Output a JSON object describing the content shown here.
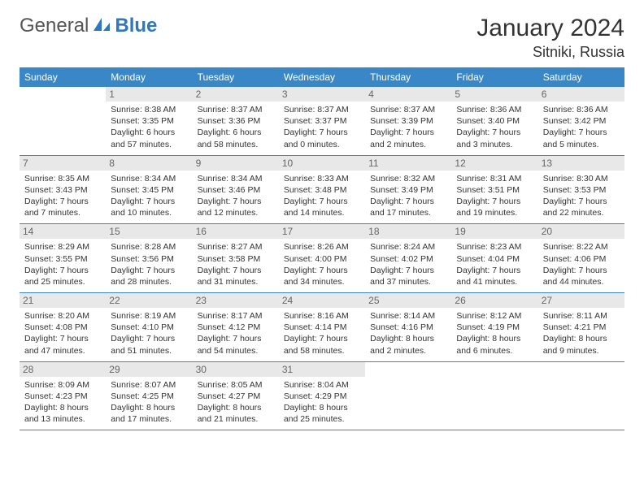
{
  "brand": {
    "general": "General",
    "blue": "Blue"
  },
  "colors": {
    "header_bg": "#3a87c8",
    "header_text": "#ffffff",
    "daynum_bg": "#e8e8e8",
    "daynum_text": "#666666",
    "body_text": "#333333",
    "rule": "#3a87c8"
  },
  "title": "January 2024",
  "location": "Sitniki, Russia",
  "weekdays": [
    "Sunday",
    "Monday",
    "Tuesday",
    "Wednesday",
    "Thursday",
    "Friday",
    "Saturday"
  ],
  "weeks": [
    [
      null,
      {
        "n": "1",
        "sr": "8:38 AM",
        "ss": "3:35 PM",
        "dl": "6 hours and 57 minutes."
      },
      {
        "n": "2",
        "sr": "8:37 AM",
        "ss": "3:36 PM",
        "dl": "6 hours and 58 minutes."
      },
      {
        "n": "3",
        "sr": "8:37 AM",
        "ss": "3:37 PM",
        "dl": "7 hours and 0 minutes."
      },
      {
        "n": "4",
        "sr": "8:37 AM",
        "ss": "3:39 PM",
        "dl": "7 hours and 2 minutes."
      },
      {
        "n": "5",
        "sr": "8:36 AM",
        "ss": "3:40 PM",
        "dl": "7 hours and 3 minutes."
      },
      {
        "n": "6",
        "sr": "8:36 AM",
        "ss": "3:42 PM",
        "dl": "7 hours and 5 minutes."
      }
    ],
    [
      {
        "n": "7",
        "sr": "8:35 AM",
        "ss": "3:43 PM",
        "dl": "7 hours and 7 minutes."
      },
      {
        "n": "8",
        "sr": "8:34 AM",
        "ss": "3:45 PM",
        "dl": "7 hours and 10 minutes."
      },
      {
        "n": "9",
        "sr": "8:34 AM",
        "ss": "3:46 PM",
        "dl": "7 hours and 12 minutes."
      },
      {
        "n": "10",
        "sr": "8:33 AM",
        "ss": "3:48 PM",
        "dl": "7 hours and 14 minutes."
      },
      {
        "n": "11",
        "sr": "8:32 AM",
        "ss": "3:49 PM",
        "dl": "7 hours and 17 minutes."
      },
      {
        "n": "12",
        "sr": "8:31 AM",
        "ss": "3:51 PM",
        "dl": "7 hours and 19 minutes."
      },
      {
        "n": "13",
        "sr": "8:30 AM",
        "ss": "3:53 PM",
        "dl": "7 hours and 22 minutes."
      }
    ],
    [
      {
        "n": "14",
        "sr": "8:29 AM",
        "ss": "3:55 PM",
        "dl": "7 hours and 25 minutes."
      },
      {
        "n": "15",
        "sr": "8:28 AM",
        "ss": "3:56 PM",
        "dl": "7 hours and 28 minutes."
      },
      {
        "n": "16",
        "sr": "8:27 AM",
        "ss": "3:58 PM",
        "dl": "7 hours and 31 minutes."
      },
      {
        "n": "17",
        "sr": "8:26 AM",
        "ss": "4:00 PM",
        "dl": "7 hours and 34 minutes."
      },
      {
        "n": "18",
        "sr": "8:24 AM",
        "ss": "4:02 PM",
        "dl": "7 hours and 37 minutes."
      },
      {
        "n": "19",
        "sr": "8:23 AM",
        "ss": "4:04 PM",
        "dl": "7 hours and 41 minutes."
      },
      {
        "n": "20",
        "sr": "8:22 AM",
        "ss": "4:06 PM",
        "dl": "7 hours and 44 minutes."
      }
    ],
    [
      {
        "n": "21",
        "sr": "8:20 AM",
        "ss": "4:08 PM",
        "dl": "7 hours and 47 minutes."
      },
      {
        "n": "22",
        "sr": "8:19 AM",
        "ss": "4:10 PM",
        "dl": "7 hours and 51 minutes."
      },
      {
        "n": "23",
        "sr": "8:17 AM",
        "ss": "4:12 PM",
        "dl": "7 hours and 54 minutes."
      },
      {
        "n": "24",
        "sr": "8:16 AM",
        "ss": "4:14 PM",
        "dl": "7 hours and 58 minutes."
      },
      {
        "n": "25",
        "sr": "8:14 AM",
        "ss": "4:16 PM",
        "dl": "8 hours and 2 minutes."
      },
      {
        "n": "26",
        "sr": "8:12 AM",
        "ss": "4:19 PM",
        "dl": "8 hours and 6 minutes."
      },
      {
        "n": "27",
        "sr": "8:11 AM",
        "ss": "4:21 PM",
        "dl": "8 hours and 9 minutes."
      }
    ],
    [
      {
        "n": "28",
        "sr": "8:09 AM",
        "ss": "4:23 PM",
        "dl": "8 hours and 13 minutes."
      },
      {
        "n": "29",
        "sr": "8:07 AM",
        "ss": "4:25 PM",
        "dl": "8 hours and 17 minutes."
      },
      {
        "n": "30",
        "sr": "8:05 AM",
        "ss": "4:27 PM",
        "dl": "8 hours and 21 minutes."
      },
      {
        "n": "31",
        "sr": "8:04 AM",
        "ss": "4:29 PM",
        "dl": "8 hours and 25 minutes."
      },
      null,
      null,
      null
    ]
  ],
  "labels": {
    "sunrise": "Sunrise: ",
    "sunset": "Sunset: ",
    "daylight": "Daylight: "
  }
}
